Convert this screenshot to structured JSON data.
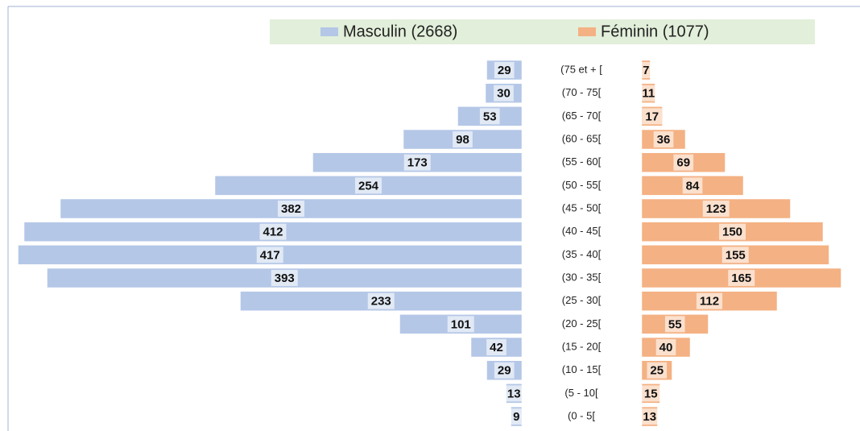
{
  "chart_data": {
    "type": "pyramid",
    "categories": [
      "(75 et + [",
      "(70 - 75[",
      "(65 - 70[",
      "(60 - 65[",
      "(55 - 60[",
      "(50 - 55[",
      "(45 - 50[",
      "(40 - 45[",
      "(35 - 40[",
      "(30 - 35[",
      "(25 - 30[",
      "(20 - 25[",
      "(15 - 20[",
      "(10 - 15[",
      "(5 - 10[",
      "(0 - 5["
    ],
    "series": [
      {
        "name": "Masculin (2668)",
        "color": "#b4c7e7",
        "values": [
          29,
          30,
          53,
          98,
          173,
          254,
          382,
          412,
          417,
          393,
          233,
          101,
          42,
          29,
          13,
          9
        ]
      },
      {
        "name": "Féminin (1077)",
        "color": "#f4b183",
        "values": [
          7,
          11,
          17,
          36,
          69,
          84,
          123,
          150,
          155,
          165,
          112,
          55,
          40,
          25,
          15,
          13
        ]
      }
    ],
    "legend": "top"
  }
}
